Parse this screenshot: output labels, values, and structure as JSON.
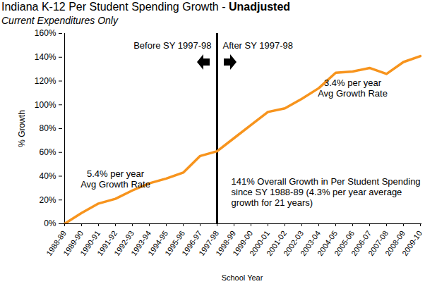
{
  "chart_data": {
    "type": "line",
    "title": "Indiana K-12 Per Student Spending Growth - Unadjusted",
    "subtitle": "Current Expenditures Only",
    "x_label": "School Year",
    "y_label": "% Growth",
    "categories": [
      "1988-89",
      "1989-90",
      "1990-91",
      "1991-92",
      "1992-93",
      "1993-94",
      "1994-95",
      "1995-96",
      "1996-97",
      "1997-98",
      "1998-99",
      "1999-00",
      "2000-01",
      "2001-02",
      "2002-03",
      "2003-04",
      "2004-05",
      "2005-06",
      "2006-07",
      "2007-08",
      "2008-09",
      "2009-10"
    ],
    "values": [
      0,
      9,
      17,
      21,
      28,
      34,
      38,
      43,
      57,
      61,
      72,
      83,
      94,
      97,
      105,
      114,
      127,
      128,
      131,
      126,
      136,
      141
    ],
    "color": "#f7941d",
    "ylim": [
      0,
      160
    ],
    "yticks": [
      {
        "value": 0,
        "label": "0%"
      },
      {
        "value": 20,
        "label": "20%"
      },
      {
        "value": 40,
        "label": "40%"
      },
      {
        "value": 60,
        "label": "60%"
      },
      {
        "value": 80,
        "label": "80%"
      },
      {
        "value": 100,
        "label": "100%"
      },
      {
        "value": 120,
        "label": "120%"
      },
      {
        "value": 140,
        "label": "140%"
      },
      {
        "value": 160,
        "label": "160%"
      }
    ],
    "grid": false,
    "vline": "1997-98",
    "annotations": [
      {
        "text": "Before SY 1997-98",
        "x": "1997-98",
        "y": 150,
        "side": "left"
      },
      {
        "text": "After SY 1997-98",
        "x": "1997-98",
        "y": 150,
        "side": "right"
      },
      {
        "text": "5.4% per year\nAvg Growth Rate",
        "x": "1991-92",
        "y": 38,
        "side": "middle"
      },
      {
        "text": "3.4% per year\nAvg Growth Rate",
        "x": "2005-06",
        "y": 114,
        "side": "middle"
      },
      {
        "text": "141% Overall Growth in Per Student Spending\nsince SY 1988-89 (4.3% per year average\ngrowth for 21 years)",
        "x": "1998-99",
        "y": 27,
        "side": "right"
      }
    ]
  }
}
